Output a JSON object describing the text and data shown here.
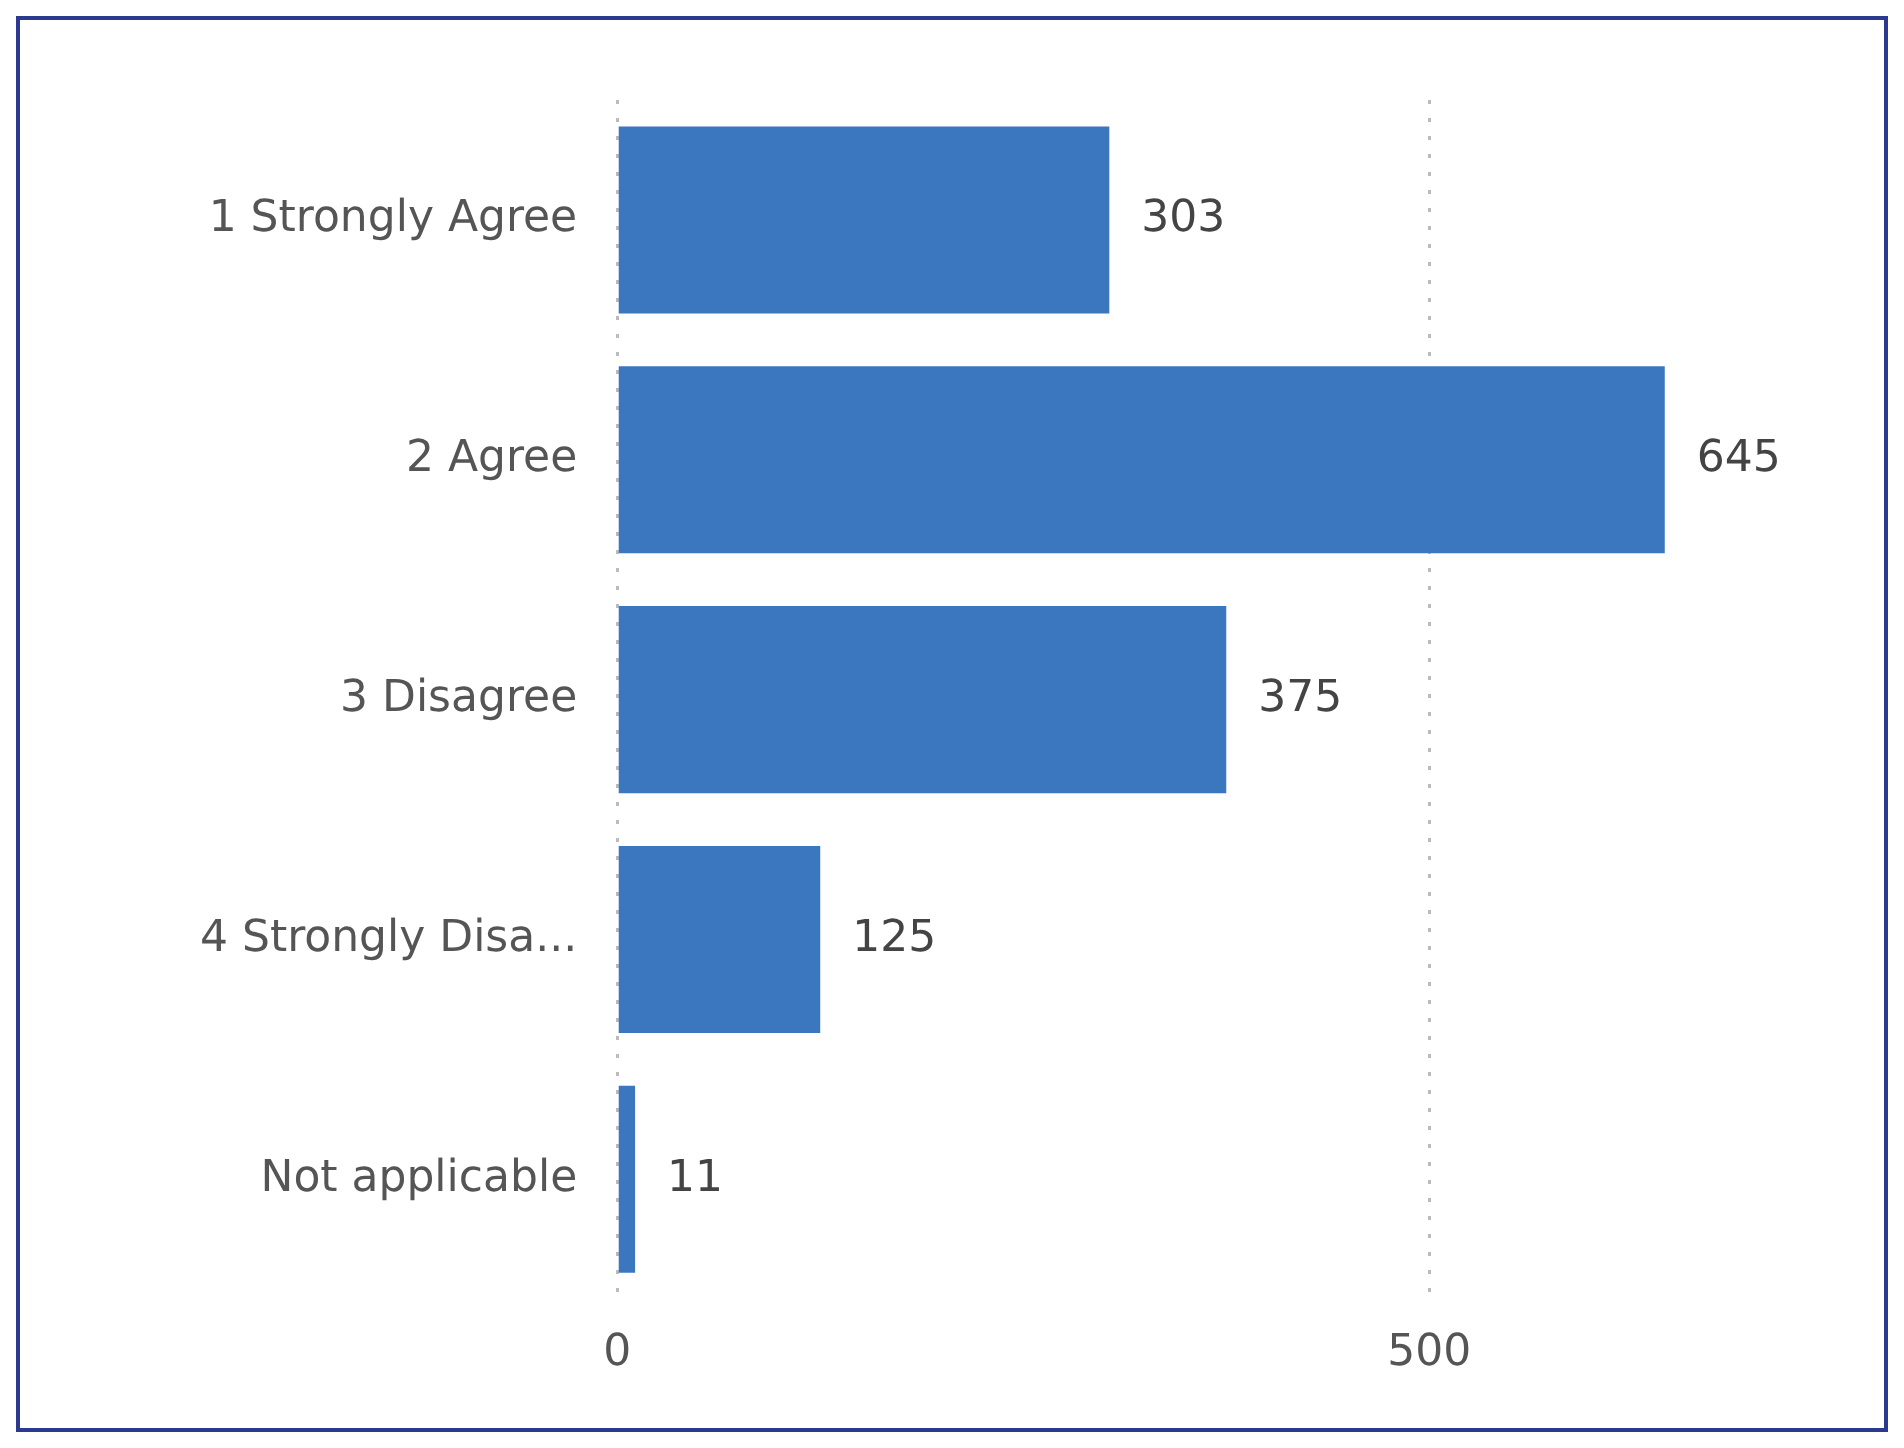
{
  "chart_data": {
    "type": "bar",
    "orientation": "horizontal",
    "categories": [
      "1 Strongly Agree",
      "2 Agree",
      "3 Disagree",
      "4 Strongly Disa...",
      "Not applicable"
    ],
    "values": [
      303,
      645,
      375,
      125,
      11
    ],
    "color": "#3a77bf",
    "xlim": [
      0,
      780
    ],
    "xticks": [
      0,
      500
    ],
    "grid": "x",
    "line_style": "dotted",
    "data_labels": true,
    "legend": false
  }
}
